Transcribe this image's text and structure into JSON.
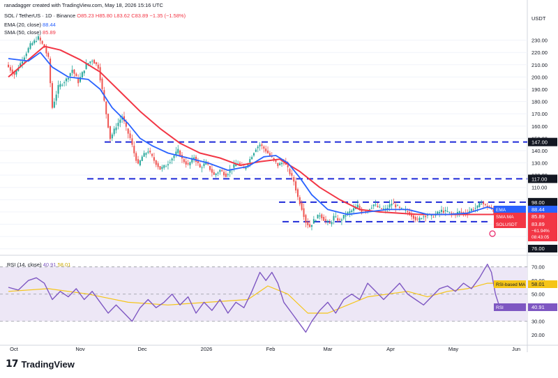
{
  "header": {
    "created": "ranadagger created with TradingView.com, May 18, 2026 15:16 UTC",
    "symbol": "SOL / TetherUS · 1D · Binance",
    "ohlc": "O85.23  H85.80  L83.62  C83.89  −1.35 (−1.58%)",
    "ema_label": "EMA (20, close)",
    "ema_value": "88.44",
    "sma_label": "SMA (50, close)",
    "sma_value": "85.89",
    "currency": "USDT"
  },
  "rsi_legend": {
    "label": "RSI (14, close)",
    "rsi": "40.91",
    "ma": "58.01"
  },
  "footer": {
    "brand": "TradingView"
  },
  "colors": {
    "up": "#26a69a",
    "down": "#ef5350",
    "ema": "#2962ff",
    "sma": "#f23645",
    "level": "#1f2ad8",
    "rsi": "#7e57c2",
    "rsi_ma": "#f5c518",
    "band": "#ede7f6"
  },
  "chart_data": [
    {
      "type": "candlestick",
      "x_ticks": [
        "Oct",
        "Nov",
        "Dec",
        "2026",
        "Feb",
        "Mar",
        "Apr",
        "May",
        "Jun"
      ],
      "y_ticks": [
        230,
        220,
        210,
        200,
        190,
        180,
        170,
        160,
        150,
        140,
        130,
        120,
        110,
        100,
        90,
        80,
        70,
        60
      ],
      "ylim": [
        57,
        240
      ],
      "levels": [
        {
          "value": 147.0,
          "label": "147.00"
        },
        {
          "value": 117.0,
          "label": "117.00"
        },
        {
          "value": 98.0,
          "label": "98.00"
        },
        {
          "value": 82.65,
          "label": "82.65"
        },
        {
          "value": 76.0,
          "label": "76.00"
        }
      ],
      "price_tags": [
        {
          "name": "EMA",
          "value": "88.44"
        },
        {
          "name": "SMA:MA",
          "value": "85.89"
        },
        {
          "name": "SOLUSDT",
          "value": "83.89",
          "change": "−61.94%",
          "time": "08:43:05"
        }
      ],
      "price_path": [
        [
          0,
          210
        ],
        [
          4,
          202
        ],
        [
          8,
          214
        ],
        [
          12,
          226
        ],
        [
          16,
          232
        ],
        [
          19,
          224
        ],
        [
          21,
          215
        ],
        [
          23,
          175
        ],
        [
          26,
          192
        ],
        [
          30,
          198
        ],
        [
          33,
          206
        ],
        [
          36,
          196
        ],
        [
          40,
          210
        ],
        [
          43,
          214
        ],
        [
          46,
          208
        ],
        [
          49,
          180
        ],
        [
          52,
          150
        ],
        [
          55,
          160
        ],
        [
          58,
          168
        ],
        [
          60,
          158
        ],
        [
          62,
          150
        ],
        [
          64,
          138
        ],
        [
          66,
          128
        ],
        [
          68,
          135
        ],
        [
          71,
          140
        ],
        [
          74,
          132
        ],
        [
          77,
          125
        ],
        [
          80,
          128
        ],
        [
          83,
          134
        ],
        [
          86,
          140
        ],
        [
          88,
          133
        ],
        [
          91,
          128
        ],
        [
          94,
          135
        ],
        [
          97,
          126
        ],
        [
          100,
          130
        ],
        [
          104,
          120
        ],
        [
          107,
          124
        ],
        [
          110,
          120
        ],
        [
          113,
          126
        ],
        [
          116,
          130
        ],
        [
          119,
          125
        ],
        [
          122,
          133
        ],
        [
          125,
          142
        ],
        [
          127,
          145
        ],
        [
          130,
          140
        ],
        [
          133,
          134
        ],
        [
          136,
          128
        ],
        [
          139,
          131
        ],
        [
          141,
          125
        ],
        [
          144,
          115
        ],
        [
          146,
          102
        ],
        [
          148,
          93
        ],
        [
          150,
          82
        ],
        [
          152,
          78
        ],
        [
          154,
          83
        ],
        [
          157,
          88
        ],
        [
          159,
          84
        ],
        [
          162,
          80
        ],
        [
          164,
          86
        ],
        [
          167,
          83
        ],
        [
          170,
          88
        ],
        [
          173,
          91
        ],
        [
          176,
          95
        ],
        [
          178,
          90
        ],
        [
          181,
          92
        ],
        [
          184,
          96
        ],
        [
          187,
          93
        ],
        [
          190,
          92
        ],
        [
          193,
          97
        ],
        [
          195,
          95
        ],
        [
          198,
          92
        ],
        [
          201,
          90
        ],
        [
          204,
          86
        ],
        [
          206,
          83
        ],
        [
          208,
          86
        ],
        [
          211,
          88
        ],
        [
          213,
          86
        ],
        [
          216,
          89
        ],
        [
          218,
          91
        ],
        [
          221,
          90
        ],
        [
          224,
          88
        ],
        [
          227,
          90
        ],
        [
          230,
          89
        ],
        [
          233,
          92
        ],
        [
          236,
          94
        ],
        [
          238,
          98
        ],
        [
          240,
          95
        ],
        [
          242,
          94
        ],
        [
          244,
          90
        ],
        [
          245,
          87
        ],
        [
          246,
          84
        ]
      ],
      "ema": [
        [
          0,
          215
        ],
        [
          10,
          213
        ],
        [
          16,
          220
        ],
        [
          22,
          208
        ],
        [
          30,
          200
        ],
        [
          40,
          198
        ],
        [
          46,
          190
        ],
        [
          52,
          175
        ],
        [
          60,
          162
        ],
        [
          66,
          150
        ],
        [
          72,
          144
        ],
        [
          80,
          138
        ],
        [
          90,
          134
        ],
        [
          100,
          130
        ],
        [
          110,
          124
        ],
        [
          120,
          127
        ],
        [
          128,
          135
        ],
        [
          134,
          136
        ],
        [
          140,
          130
        ],
        [
          146,
          118
        ],
        [
          152,
          104
        ],
        [
          160,
          92
        ],
        [
          170,
          88
        ],
        [
          180,
          90
        ],
        [
          190,
          92
        ],
        [
          200,
          92
        ],
        [
          210,
          88
        ],
        [
          220,
          88
        ],
        [
          230,
          89
        ],
        [
          240,
          94
        ],
        [
          246,
          91
        ]
      ],
      "sma": [
        [
          0,
          200
        ],
        [
          10,
          214
        ],
        [
          18,
          225
        ],
        [
          26,
          222
        ],
        [
          36,
          214
        ],
        [
          46,
          204
        ],
        [
          56,
          188
        ],
        [
          66,
          172
        ],
        [
          76,
          158
        ],
        [
          86,
          146
        ],
        [
          96,
          138
        ],
        [
          106,
          134
        ],
        [
          116,
          128
        ],
        [
          126,
          131
        ],
        [
          136,
          133
        ],
        [
          146,
          123
        ],
        [
          156,
          110
        ],
        [
          166,
          100
        ],
        [
          176,
          92
        ],
        [
          186,
          90
        ],
        [
          196,
          89
        ],
        [
          206,
          88
        ],
        [
          216,
          88
        ],
        [
          226,
          88
        ],
        [
          236,
          88
        ],
        [
          246,
          88
        ]
      ]
    },
    {
      "type": "line",
      "name": "RSI",
      "y_ticks": [
        70,
        60,
        50,
        40,
        30,
        20
      ],
      "ylim": [
        15,
        76
      ],
      "band": [
        30,
        70
      ],
      "labels": [
        {
          "name": "RSI-based MA",
          "value": "58.01"
        },
        {
          "name": "RSI",
          "value": "40.91"
        }
      ],
      "rsi": [
        [
          0,
          55
        ],
        [
          5,
          53
        ],
        [
          10,
          60
        ],
        [
          14,
          62
        ],
        [
          18,
          58
        ],
        [
          22,
          46
        ],
        [
          26,
          52
        ],
        [
          30,
          48
        ],
        [
          34,
          54
        ],
        [
          38,
          46
        ],
        [
          42,
          52
        ],
        [
          46,
          44
        ],
        [
          50,
          36
        ],
        [
          54,
          42
        ],
        [
          58,
          36
        ],
        [
          62,
          30
        ],
        [
          66,
          40
        ],
        [
          70,
          46
        ],
        [
          74,
          40
        ],
        [
          78,
          44
        ],
        [
          82,
          50
        ],
        [
          86,
          42
        ],
        [
          90,
          48
        ],
        [
          94,
          36
        ],
        [
          98,
          44
        ],
        [
          102,
          38
        ],
        [
          106,
          46
        ],
        [
          110,
          36
        ],
        [
          114,
          44
        ],
        [
          118,
          40
        ],
        [
          122,
          52
        ],
        [
          126,
          66
        ],
        [
          129,
          60
        ],
        [
          132,
          66
        ],
        [
          135,
          58
        ],
        [
          138,
          44
        ],
        [
          142,
          36
        ],
        [
          146,
          28
        ],
        [
          149,
          22
        ],
        [
          152,
          30
        ],
        [
          156,
          38
        ],
        [
          160,
          44
        ],
        [
          164,
          36
        ],
        [
          168,
          46
        ],
        [
          172,
          50
        ],
        [
          176,
          46
        ],
        [
          180,
          58
        ],
        [
          184,
          52
        ],
        [
          188,
          46
        ],
        [
          192,
          52
        ],
        [
          196,
          58
        ],
        [
          200,
          50
        ],
        [
          204,
          46
        ],
        [
          208,
          42
        ],
        [
          212,
          48
        ],
        [
          216,
          54
        ],
        [
          220,
          56
        ],
        [
          224,
          52
        ],
        [
          228,
          58
        ],
        [
          232,
          54
        ],
        [
          236,
          62
        ],
        [
          240,
          72
        ],
        [
          242,
          66
        ],
        [
          244,
          50
        ],
        [
          246,
          41
        ]
      ],
      "rsi_ma": [
        [
          0,
          52
        ],
        [
          20,
          54
        ],
        [
          40,
          50
        ],
        [
          60,
          44
        ],
        [
          80,
          42
        ],
        [
          100,
          44
        ],
        [
          120,
          46
        ],
        [
          130,
          56
        ],
        [
          140,
          50
        ],
        [
          150,
          36
        ],
        [
          160,
          36
        ],
        [
          170,
          42
        ],
        [
          180,
          48
        ],
        [
          190,
          50
        ],
        [
          200,
          52
        ],
        [
          210,
          48
        ],
        [
          220,
          52
        ],
        [
          230,
          54
        ],
        [
          240,
          58
        ],
        [
          246,
          58
        ]
      ]
    }
  ]
}
